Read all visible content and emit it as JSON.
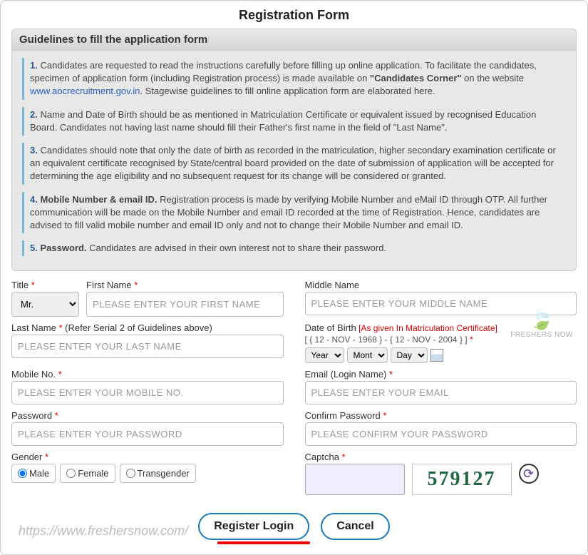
{
  "title": "Registration Form",
  "guidelines": {
    "header": "Guidelines to fill the application form",
    "items": [
      {
        "num": "1.",
        "pre": "Candidates are requested to read the instructions carefully before filling up online application. To facilitate the candidates, specimen of application form (including Registration process) is made available on ",
        "bold": "\"Candidates Corner\"",
        "post": " on the website ",
        "link": "www.aocrecruitment.gov.in",
        "tail": ". Stagewise guidelines to fill online application form are elaborated here."
      },
      {
        "num": "2.",
        "text": "Name and Date of Birth should be as mentioned in Matriculation Certificate or equivalent issued by recognised Education Board. Candidates not having last name should fill their Father's first name in the field of \"Last Name\"."
      },
      {
        "num": "3.",
        "text": "Candidates should note that only the date of birth as recorded in the matriculation, higher secondary examination certificate or an equivalent certificate recognised by State/central board provided on the date of submission of application will be accepted for determining the age eligibility and no subsequent request for its change will be considered or granted."
      },
      {
        "num": "4.",
        "bold": "Mobile Number & email ID.",
        "text": " Registration process is made by verifying Mobile Number and eMail ID through OTP. All further communication will be made on the Mobile Number and email ID recorded at the time of Registration. Hence, candidates are advised to fill valid mobile number and email ID only and not to change their Mobile Number and email ID."
      },
      {
        "num": "5.",
        "bold": "Password.",
        "text": " Candidates are advised in their own interest not to share their password."
      }
    ]
  },
  "labels": {
    "title_field": "Title",
    "first_name": "First Name",
    "middle_name": "Middle Name",
    "last_name": "Last Name",
    "last_name_note": " (Refer Serial 2 of Guidelines above)",
    "dob": "Date of Birth",
    "dob_note": " [As given In Matriculation Certificate]",
    "dob_range": "[ { 12 - NOV - 1968 } - { 12 - NOV - 2004 } ]",
    "mobile": "Mobile No.",
    "email": "Email (Login Name)",
    "password": "Password",
    "confirm": "Confirm Password",
    "gender": "Gender",
    "captcha": "Captcha"
  },
  "placeholders": {
    "first_name": "PLEASE ENTER YOUR FIRST NAME",
    "middle_name": "PLEASE ENTER YOUR MIDDLE NAME",
    "last_name": "PLEASE ENTER YOUR LAST NAME",
    "mobile": "PLEASE ENTER YOUR MOBILE NO.",
    "email": "PLEASE ENTER YOUR EMAIL",
    "password": "PLEASE ENTER YOUR PASSWORD",
    "confirm": "PLEASE CONFIRM YOUR PASSWORD"
  },
  "title_options": [
    "Mr."
  ],
  "dob_options": {
    "year": "Year",
    "month": "Mont",
    "day": "Day"
  },
  "gender_options": [
    "Male",
    "Female",
    "Transgender"
  ],
  "captcha_value": "579127",
  "buttons": {
    "register": "Register Login",
    "cancel": "Cancel"
  },
  "watermark": "FRESHERS NOW",
  "footer_url": "https://www.freshersnow.com/"
}
